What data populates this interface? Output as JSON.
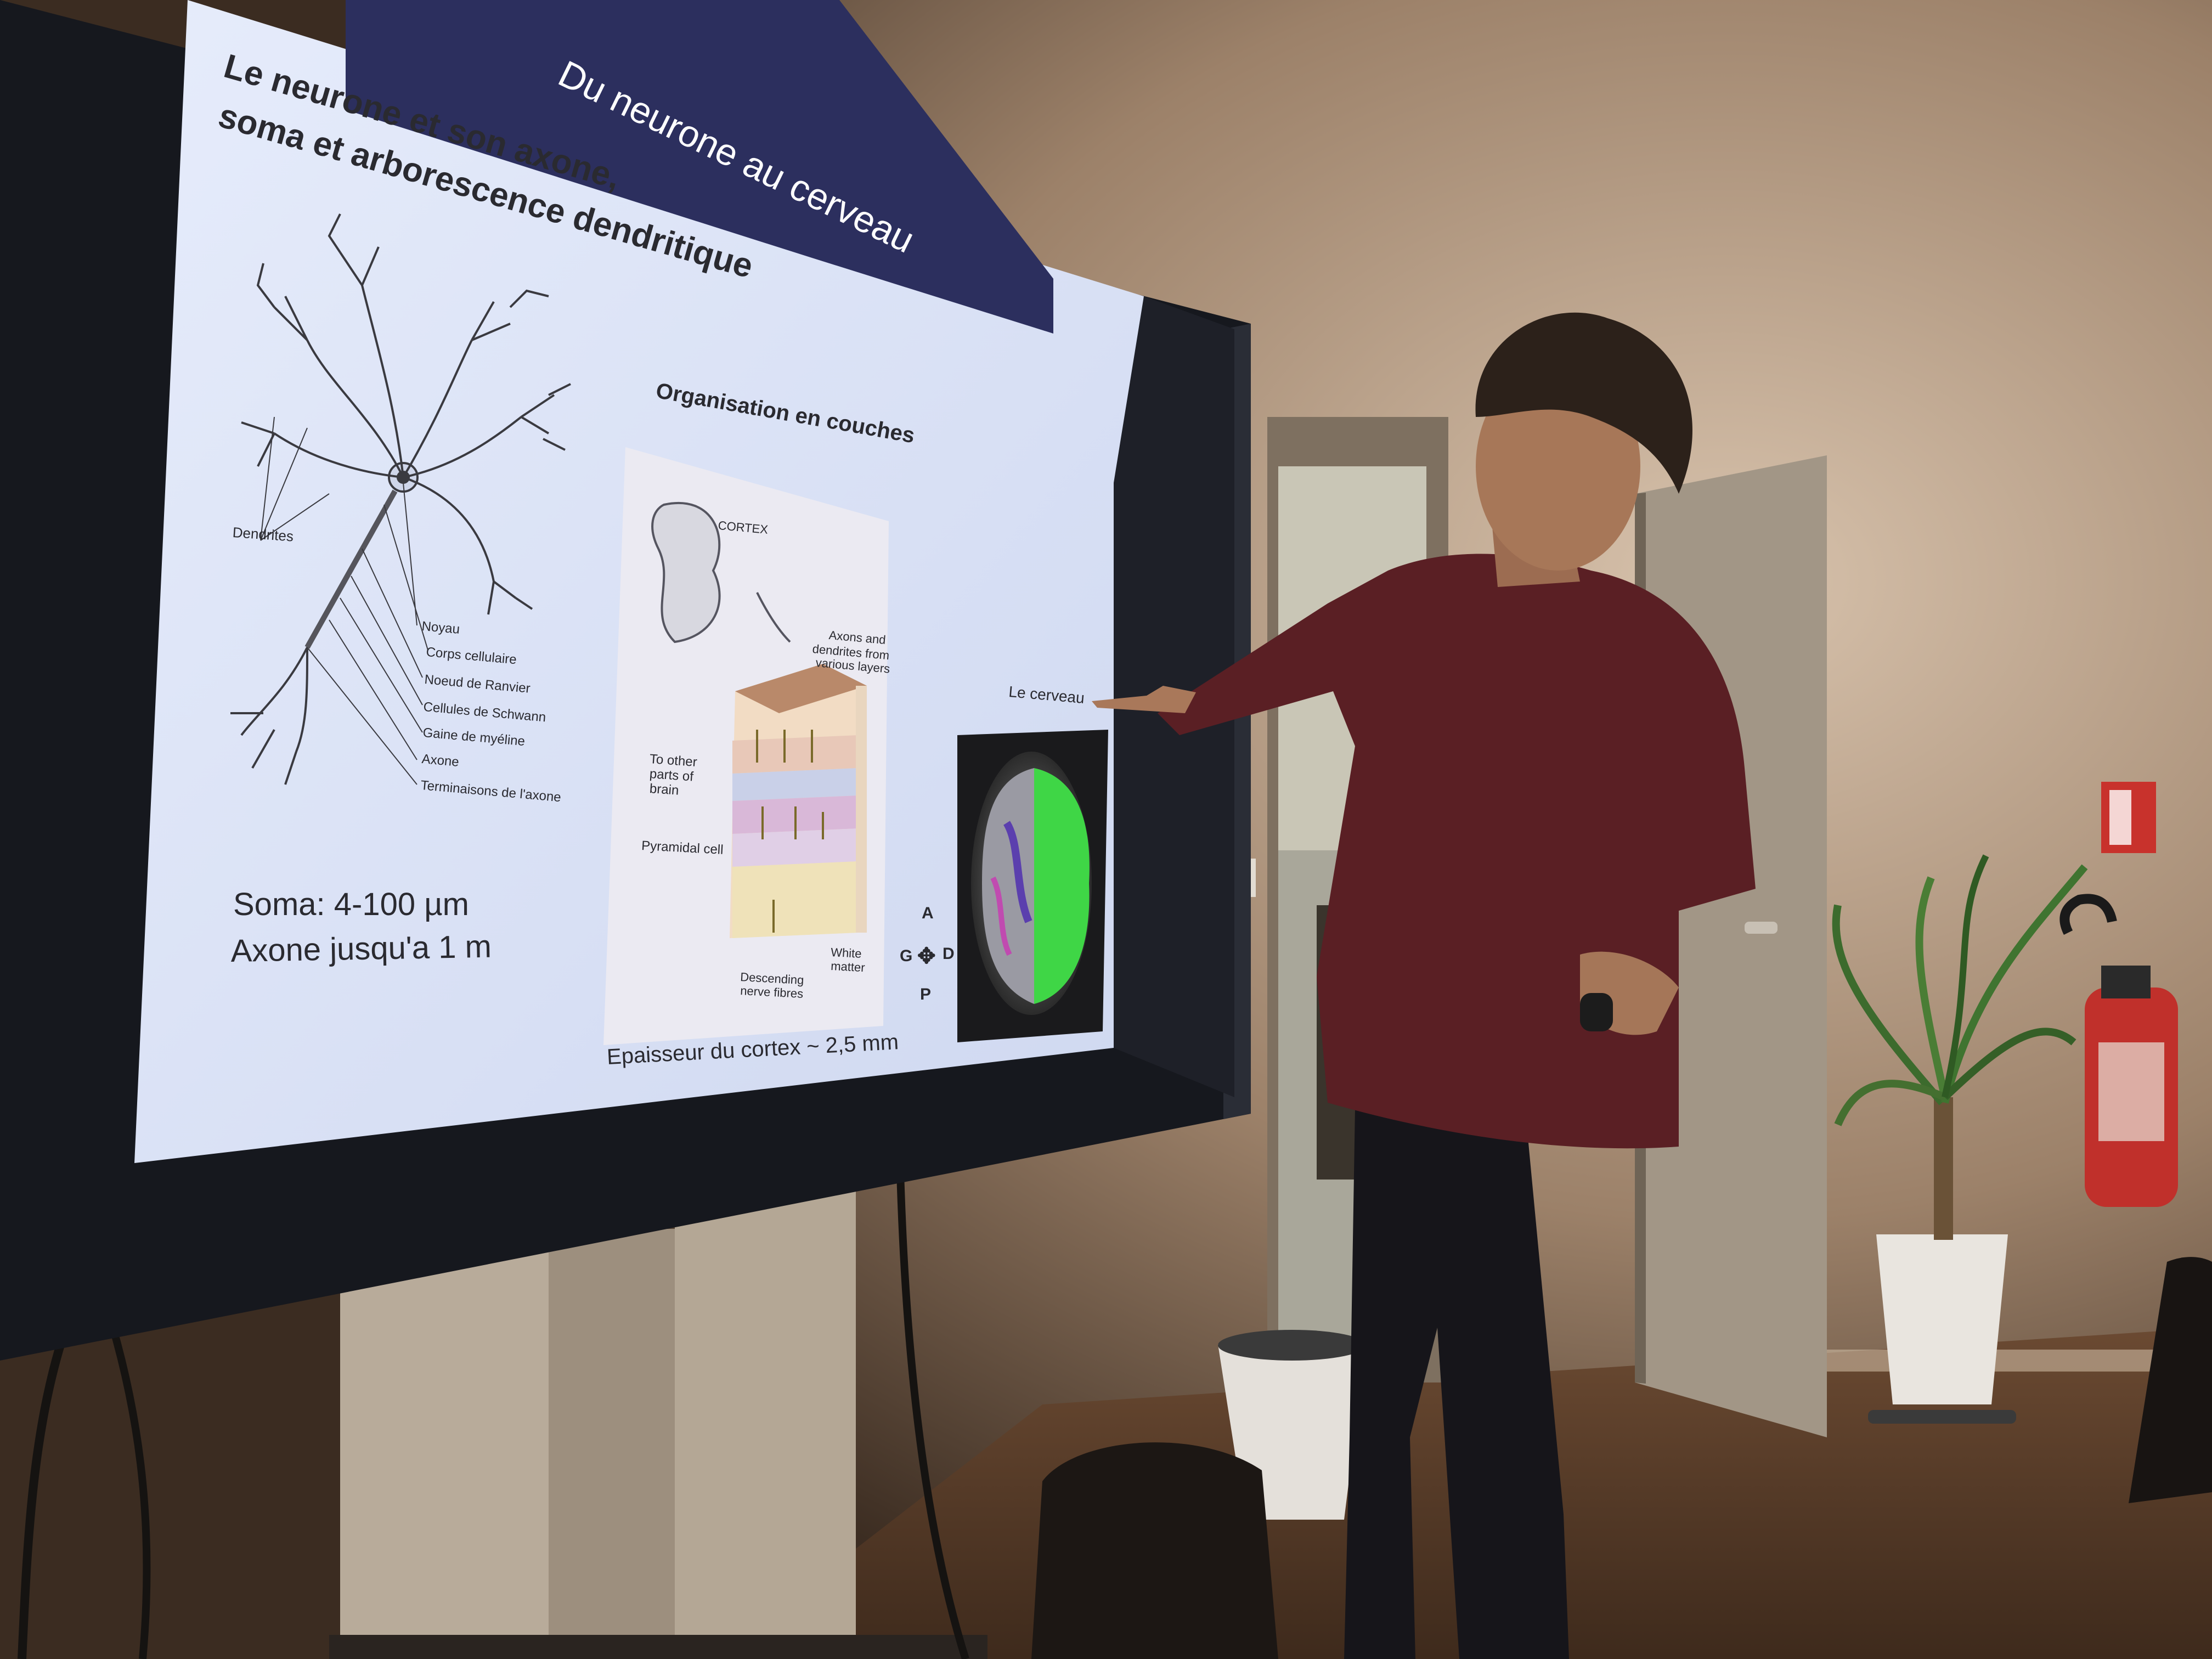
{
  "slide": {
    "header": "Du neurone au cerveau",
    "subtitle_line1": "Le neurone et son axone,",
    "subtitle_line2": "soma et arborescence dendritique",
    "neuron_labels": {
      "dendrites": "Dendrites",
      "noyau": "Noyau",
      "corps_cellulaire": "Corps cellulaire",
      "noeud_ranvier": "Noeud de Ranvier",
      "cellules_schwann": "Cellules de Schwann",
      "gaine_myeline": "Gaine de myéline",
      "axone": "Axone",
      "terminaisons": "Terminaisons de l'axone"
    },
    "soma_text": "Soma: 4-100 µm",
    "axone_text": "Axone jusqu'a 1 m",
    "layers_title": "Organisation en couches",
    "cortex_labels": {
      "cortex": "CORTEX",
      "axons_dendrites": [
        "Axons and",
        "dendrites from",
        "various layers"
      ],
      "to_other": [
        "To other",
        "parts of",
        "brain"
      ],
      "pyramidal": "Pyramidal cell",
      "descending": [
        "Descending",
        "nerve fibres"
      ],
      "white_matter": [
        "White",
        "matter"
      ]
    },
    "cortex_caption": "Epaisseur du cortex ~ 2,5 mm",
    "brain_title": "Le cerveau",
    "compass": {
      "a": "A",
      "g": "G",
      "d": "D",
      "p": "P"
    }
  },
  "colors": {
    "slide_bg": "#dfe6f7",
    "header_bar": "#2c2f5e",
    "wall": "#4a3a2e",
    "shirt": "#5a1f24",
    "brain_green": "#3fd646"
  }
}
